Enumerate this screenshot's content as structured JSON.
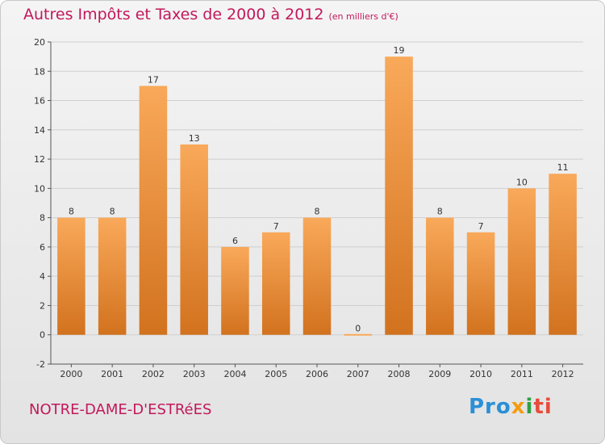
{
  "header": {
    "title": "Autres Impôts et Taxes de 2000 à 2012",
    "unit": "(en milliers d'€)"
  },
  "footer": {
    "commune": "NOTRE-DAME-D'ESTRéES",
    "logo": {
      "p1": "Pro",
      "p2": "x",
      "p3": "i",
      "p4": "ti"
    }
  },
  "colors": {
    "bar_top": "#f9a95a",
    "bar_bottom": "#d2721e",
    "title": "#c2185b",
    "grid": "#cfcfcf"
  },
  "chart_data": {
    "type": "bar",
    "title": "Autres Impôts et Taxes de 2000 à 2012",
    "subtitle": "(en milliers d'€)",
    "categories": [
      "2000",
      "2001",
      "2002",
      "2003",
      "2004",
      "2005",
      "2006",
      "2007",
      "2008",
      "2009",
      "2010",
      "2011",
      "2012"
    ],
    "values": [
      8,
      8,
      17,
      13,
      6,
      7,
      8,
      0,
      19,
      8,
      7,
      10,
      11
    ],
    "ylim": [
      -2,
      20
    ],
    "yticks": [
      -2,
      0,
      2,
      4,
      6,
      8,
      10,
      12,
      14,
      16,
      18,
      20
    ],
    "grid": true,
    "legend": "none"
  }
}
